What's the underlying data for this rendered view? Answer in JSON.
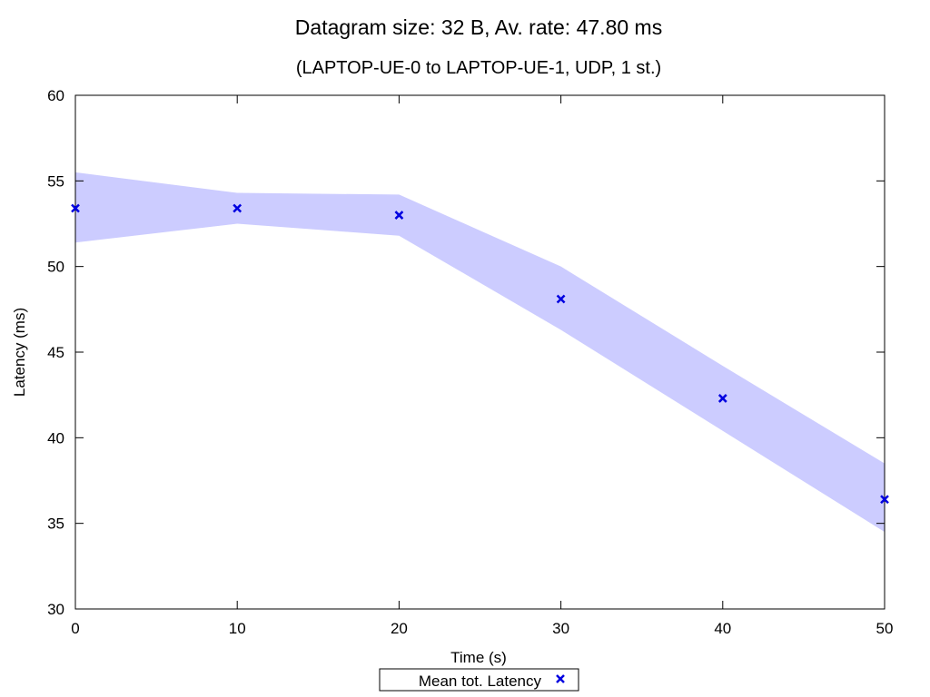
{
  "chart_data": {
    "type": "line",
    "title": "Datagram size: 32 B, Av. rate: 47.80 ms",
    "subtitle": "(LAPTOP-UE-0 to LAPTOP-UE-1, UDP, 1 st.)",
    "xlabel": "Time (s)",
    "ylabel": "Latency (ms)",
    "xlim": [
      0,
      50
    ],
    "ylim": [
      30,
      60
    ],
    "xticks": [
      "0",
      "10",
      "20",
      "30",
      "40",
      "50"
    ],
    "yticks": [
      "30",
      "35",
      "40",
      "45",
      "50",
      "55",
      "60"
    ],
    "grid": false,
    "legend_position": "bottom-center",
    "series": [
      {
        "name": "Mean tot. Latency",
        "marker": "x",
        "color": "#0000e0",
        "x": [
          0,
          10,
          20,
          30,
          40,
          50
        ],
        "y": [
          53.4,
          53.4,
          53.0,
          48.1,
          42.3,
          36.4
        ]
      }
    ],
    "band": {
      "color": "#ccccff",
      "x": [
        0,
        10,
        20,
        30,
        40,
        50
      ],
      "upper": [
        55.5,
        54.3,
        54.2,
        50.0,
        44.2,
        38.5
      ],
      "lower": [
        51.4,
        52.5,
        51.8,
        46.3,
        40.4,
        34.5
      ]
    }
  }
}
